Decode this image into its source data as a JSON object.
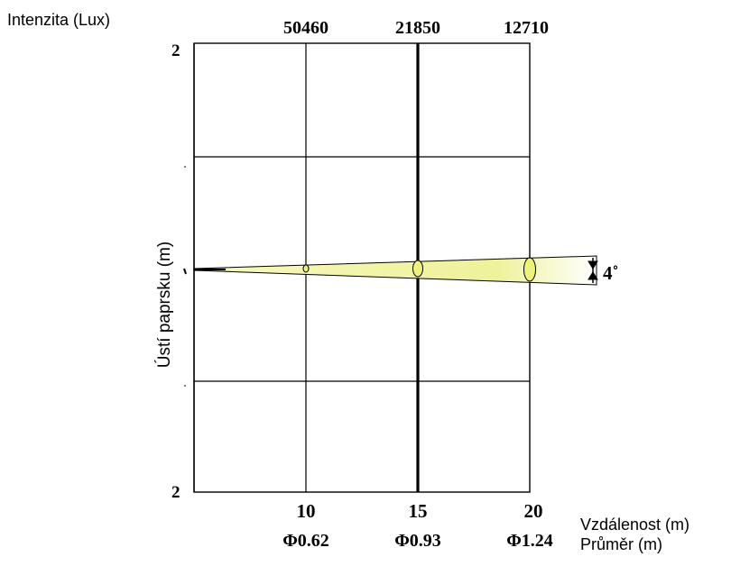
{
  "labels": {
    "intensity_title": "Intenzita (Lux)",
    "y_axis_title": "Ústí paprsku (m)",
    "distance_title": "Vzdálenost (m)",
    "diameter_title": "Průměr (m)",
    "y_top": "2",
    "y_bottom": "2",
    "y_center": "0",
    "beam_angle": "4˚"
  },
  "distances": [
    {
      "distance": "10",
      "lux": "50460",
      "diameter": "Φ0.62"
    },
    {
      "distance": "15",
      "lux": "21850",
      "diameter": "Φ0.93"
    },
    {
      "distance": "20",
      "lux": "12710",
      "diameter": "Φ1.24"
    }
  ],
  "colors": {
    "beam_inner": "#f0f3a4",
    "beam_outer": "#ffffff",
    "ellipse_fill": "#eef27a",
    "grid": "#000000"
  }
}
